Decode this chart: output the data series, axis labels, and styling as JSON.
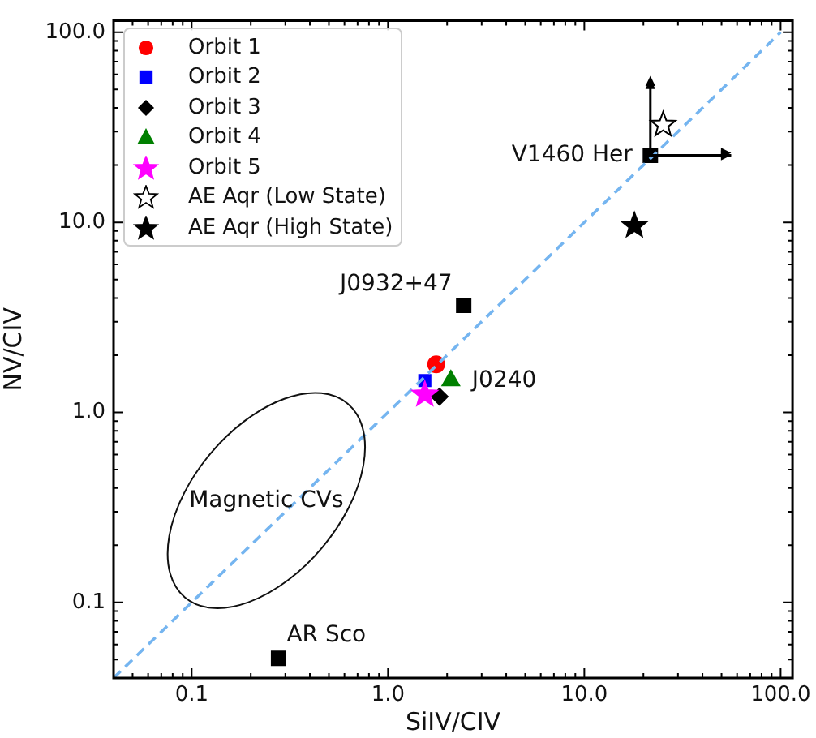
{
  "chart_data": {
    "type": "scatter",
    "xlabel": "SiIV/CIV",
    "ylabel": "NV/CIV",
    "log": "xy",
    "grid": false,
    "legend": "top left",
    "xlim": [
      0.04,
      115
    ],
    "ylim": [
      0.04,
      115
    ],
    "xticks": [
      {
        "value": 0.1,
        "label": "0.1"
      },
      {
        "value": 1,
        "label": "1.0"
      },
      {
        "value": 10,
        "label": "10.0"
      },
      {
        "value": 100,
        "label": "100.0"
      }
    ],
    "yticks": [
      {
        "value": 0.1,
        "label": "0.1"
      },
      {
        "value": 1,
        "label": "1.0"
      },
      {
        "value": 10,
        "label": "10.0"
      },
      {
        "value": 100,
        "label": "100.0"
      }
    ],
    "series": [
      {
        "type": "line",
        "color": "#75b5f0",
        "line_style": "dashed",
        "marker": "none",
        "x": [
          0.04,
          100
        ],
        "values": [
          0.04,
          100
        ]
      },
      {
        "name": "Orbit 1",
        "color": "#ff0000",
        "marker": "circle",
        "x": [
          1.76
        ],
        "values": [
          1.79
        ]
      },
      {
        "name": "Orbit 2",
        "color": "#0000ff",
        "marker": "square",
        "x": [
          1.54
        ],
        "values": [
          1.47
        ]
      },
      {
        "name": "Orbit 3",
        "color": "#000000",
        "marker": "diamond",
        "x": [
          1.83
        ],
        "values": [
          1.21
        ]
      },
      {
        "name": "Orbit 4",
        "color": "#008000",
        "marker": "triangle",
        "x": [
          2.09
        ],
        "values": [
          1.47
        ]
      },
      {
        "name": "Orbit 5",
        "color": "#ff00ff",
        "marker": "star",
        "x": [
          1.54
        ],
        "values": [
          1.24
        ]
      },
      {
        "name": "AE Aqr (Low State)",
        "color": "#ffffff",
        "marker": "star",
        "x": [
          25.2
        ],
        "values": [
          32.6
        ]
      },
      {
        "name": "AE Aqr (High State)",
        "color": "#000000",
        "marker": "star",
        "x": [
          18
        ],
        "values": [
          9.6
        ]
      },
      {
        "color": "#000000",
        "marker": "square",
        "x": [
          2.43,
          21.7,
          0.277
        ],
        "values": [
          3.66,
          22.5,
          0.0508
        ],
        "errors": [
          null,
          [
            22.5,
            57
          ],
          null
        ],
        "xerrors": [
          null,
          [
            21.7,
            56
          ],
          null
        ]
      }
    ],
    "annotations": [
      {
        "text": "J0932+47",
        "x": 2.43,
        "y": 3.66
      },
      {
        "text": "V1460 Her",
        "x": 21.7,
        "y": 22.5
      },
      {
        "text": "J0240",
        "x": 2.09,
        "y": 1.47
      },
      {
        "text": "AR Sco",
        "x": 0.277,
        "y": 0.0508
      },
      "Magnetic CVs"
    ]
  }
}
